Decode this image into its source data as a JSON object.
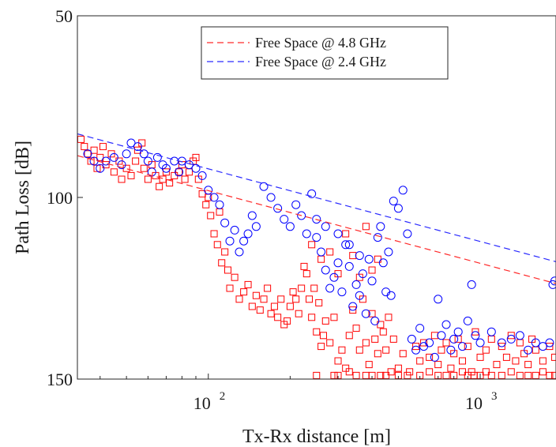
{
  "chart_data": {
    "type": "scatter",
    "x_scale": "log",
    "y_reversed": true,
    "xlim": [
      33,
      1900
    ],
    "ylim": [
      50,
      150
    ],
    "xlabel": "Tx-Rx distance [m]",
    "ylabel": "Path Loss [dB]",
    "y_ticks": [
      {
        "value": 50,
        "label": "50"
      },
      {
        "value": 100,
        "label": "100"
      },
      {
        "value": 150,
        "label": "150"
      }
    ],
    "x_ticks": [
      {
        "value": 100,
        "base": "10",
        "exp": "2"
      },
      {
        "value": 1000,
        "base": "10",
        "exp": "3"
      }
    ],
    "legend_position": "top-center",
    "grid": false,
    "lines": [
      {
        "name": "Free Space @ 4.8 GHz",
        "color": "#ff2a2a",
        "style": "dashed",
        "points": [
          [
            33,
            88.5
          ],
          [
            1900,
            123.7
          ]
        ]
      },
      {
        "name": "Free Space @ 2.4 GHz",
        "color": "#2a2aff",
        "style": "dashed",
        "points": [
          [
            33,
            82.5
          ],
          [
            1900,
            117.7
          ]
        ]
      }
    ],
    "scatter_series": [
      {
        "marker": "square",
        "color": "#ff0000",
        "points": [
          [
            34,
            84
          ],
          [
            35,
            86
          ],
          [
            36,
            88
          ],
          [
            37,
            90
          ],
          [
            38,
            87
          ],
          [
            39,
            92
          ],
          [
            40,
            89
          ],
          [
            41,
            86
          ],
          [
            42,
            91
          ],
          [
            44,
            88
          ],
          [
            45,
            93
          ],
          [
            47,
            90
          ],
          [
            48,
            95
          ],
          [
            50,
            92
          ],
          [
            52,
            94
          ],
          [
            54,
            90
          ],
          [
            55,
            87
          ],
          [
            57,
            85
          ],
          [
            58,
            92
          ],
          [
            60,
            95
          ],
          [
            62,
            91
          ],
          [
            64,
            94
          ],
          [
            66,
            97
          ],
          [
            68,
            95
          ],
          [
            70,
            93
          ],
          [
            72,
            96
          ],
          [
            75,
            94
          ],
          [
            78,
            93
          ],
          [
            80,
            91
          ],
          [
            82,
            95
          ],
          [
            85,
            93
          ],
          [
            88,
            90
          ],
          [
            90,
            89
          ],
          [
            92,
            95
          ],
          [
            95,
            99
          ],
          [
            98,
            102
          ],
          [
            100,
            100
          ],
          [
            102,
            105
          ],
          [
            105,
            110
          ],
          [
            108,
            113
          ],
          [
            110,
            104
          ],
          [
            112,
            118
          ],
          [
            115,
            115
          ],
          [
            118,
            120
          ],
          [
            120,
            125
          ],
          [
            125,
            122
          ],
          [
            130,
            128
          ],
          [
            135,
            126
          ],
          [
            140,
            124
          ],
          [
            145,
            130
          ],
          [
            150,
            127
          ],
          [
            155,
            131
          ],
          [
            160,
            128
          ],
          [
            165,
            125
          ],
          [
            170,
            132
          ],
          [
            175,
            130
          ],
          [
            180,
            133
          ],
          [
            185,
            128
          ],
          [
            190,
            135
          ],
          [
            195,
            134
          ],
          [
            200,
            130
          ],
          [
            205,
            126
          ],
          [
            210,
            128
          ],
          [
            215,
            132
          ],
          [
            220,
            125
          ],
          [
            225,
            119
          ],
          [
            230,
            121
          ],
          [
            235,
            128
          ],
          [
            240,
            133
          ],
          [
            245,
            125
          ],
          [
            250,
            137
          ],
          [
            255,
            129
          ],
          [
            260,
            141
          ],
          [
            265,
            138
          ],
          [
            270,
            134
          ],
          [
            280,
            140
          ],
          [
            290,
            133
          ],
          [
            300,
            145
          ],
          [
            310,
            142
          ],
          [
            320,
            147
          ],
          [
            330,
            138
          ],
          [
            340,
            131
          ],
          [
            350,
            136
          ],
          [
            360,
            142
          ],
          [
            370,
            128
          ],
          [
            380,
            140
          ],
          [
            390,
            146
          ],
          [
            400,
            132
          ],
          [
            410,
            139
          ],
          [
            420,
            143
          ],
          [
            430,
            135
          ],
          [
            440,
            137
          ],
          [
            450,
            142
          ],
          [
            460,
            133
          ],
          [
            470,
            148
          ],
          [
            480,
            139
          ],
          [
            500,
            147
          ],
          [
            520,
            143
          ],
          [
            550,
            148
          ],
          [
            580,
            141
          ],
          [
            600,
            145
          ],
          [
            620,
            140
          ],
          [
            650,
            144
          ],
          [
            680,
            138
          ],
          [
            700,
            146
          ],
          [
            720,
            142
          ],
          [
            750,
            140
          ],
          [
            780,
            147
          ],
          [
            800,
            143
          ],
          [
            830,
            139
          ],
          [
            860,
            145
          ],
          [
            900,
            141
          ],
          [
            930,
            148
          ],
          [
            960,
            137
          ],
          [
            1000,
            144
          ],
          [
            1050,
            142
          ],
          [
            1100,
            139
          ],
          [
            1150,
            146
          ],
          [
            1200,
            141
          ],
          [
            1250,
            144
          ],
          [
            1300,
            138
          ],
          [
            1350,
            145
          ],
          [
            1400,
            140
          ],
          [
            1450,
            143
          ],
          [
            1500,
            146
          ],
          [
            1550,
            139
          ],
          [
            1600,
            142
          ],
          [
            1700,
            145
          ],
          [
            1800,
            141
          ],
          [
            1880,
            144
          ],
          [
            250,
            149
          ],
          [
            300,
            149
          ],
          [
            350,
            149
          ],
          [
            400,
            149
          ],
          [
            450,
            149
          ],
          [
            500,
            149
          ],
          [
            600,
            149
          ],
          [
            700,
            149
          ],
          [
            800,
            149
          ],
          [
            900,
            149
          ],
          [
            1000,
            149
          ],
          [
            1100,
            149
          ],
          [
            1200,
            149
          ],
          [
            1400,
            149
          ],
          [
            1600,
            149
          ],
          [
            1800,
            149
          ],
          [
            290,
            149
          ],
          [
            330,
            148
          ],
          [
            380,
            149
          ],
          [
            430,
            149
          ],
          [
            540,
            149
          ],
          [
            650,
            148
          ],
          [
            750,
            149
          ],
          [
            860,
            148
          ],
          [
            950,
            149
          ],
          [
            1050,
            148
          ],
          [
            1300,
            148
          ],
          [
            1500,
            149
          ],
          [
            1700,
            148
          ],
          [
            1880,
            149
          ],
          [
            240,
            113
          ],
          [
            260,
            117
          ],
          [
            280,
            115
          ],
          [
            300,
            121
          ],
          [
            320,
            110
          ],
          [
            340,
            116
          ],
          [
            360,
            122
          ],
          [
            380,
            108
          ],
          [
            400,
            120
          ],
          [
            420,
            117
          ]
        ]
      },
      {
        "marker": "circle",
        "color": "#0000ff",
        "points": [
          [
            36,
            88
          ],
          [
            38,
            90
          ],
          [
            40,
            92
          ],
          [
            42,
            90
          ],
          [
            45,
            89
          ],
          [
            48,
            91
          ],
          [
            50,
            88
          ],
          [
            52,
            85
          ],
          [
            55,
            86
          ],
          [
            58,
            88
          ],
          [
            60,
            90
          ],
          [
            62,
            93
          ],
          [
            65,
            89
          ],
          [
            68,
            91
          ],
          [
            70,
            92
          ],
          [
            75,
            90
          ],
          [
            78,
            93
          ],
          [
            80,
            90
          ],
          [
            85,
            91
          ],
          [
            90,
            92
          ],
          [
            95,
            94
          ],
          [
            100,
            98
          ],
          [
            105,
            100
          ],
          [
            110,
            102
          ],
          [
            115,
            107
          ],
          [
            120,
            112
          ],
          [
            125,
            109
          ],
          [
            130,
            115
          ],
          [
            135,
            112
          ],
          [
            140,
            110
          ],
          [
            145,
            105
          ],
          [
            150,
            108
          ],
          [
            160,
            97
          ],
          [
            170,
            100
          ],
          [
            180,
            103
          ],
          [
            190,
            106
          ],
          [
            200,
            108
          ],
          [
            210,
            102
          ],
          [
            220,
            105
          ],
          [
            230,
            110
          ],
          [
            240,
            99
          ],
          [
            250,
            106
          ],
          [
            260,
            115
          ],
          [
            270,
            120
          ],
          [
            280,
            125
          ],
          [
            290,
            122
          ],
          [
            300,
            118
          ],
          [
            310,
            126
          ],
          [
            320,
            113
          ],
          [
            330,
            119
          ],
          [
            340,
            130
          ],
          [
            350,
            124
          ],
          [
            360,
            127
          ],
          [
            370,
            121
          ],
          [
            380,
            132
          ],
          [
            390,
            117
          ],
          [
            400,
            123
          ],
          [
            410,
            134
          ],
          [
            420,
            111
          ],
          [
            430,
            108
          ],
          [
            440,
            118
          ],
          [
            450,
            126
          ],
          [
            460,
            115
          ],
          [
            470,
            127
          ],
          [
            480,
            101
          ],
          [
            500,
            103
          ],
          [
            520,
            98
          ],
          [
            540,
            110
          ],
          [
            560,
            139
          ],
          [
            580,
            142
          ],
          [
            600,
            136
          ],
          [
            620,
            141
          ],
          [
            650,
            140
          ],
          [
            680,
            144
          ],
          [
            700,
            128
          ],
          [
            720,
            138
          ],
          [
            750,
            135
          ],
          [
            780,
            142
          ],
          [
            800,
            139
          ],
          [
            830,
            137
          ],
          [
            860,
            141
          ],
          [
            900,
            134
          ],
          [
            930,
            124
          ],
          [
            960,
            138
          ],
          [
            1000,
            140
          ],
          [
            1100,
            137
          ],
          [
            1200,
            140
          ],
          [
            1300,
            139
          ],
          [
            1400,
            138
          ],
          [
            1500,
            142
          ],
          [
            1600,
            140
          ],
          [
            1700,
            141
          ],
          [
            1800,
            140
          ],
          [
            1880,
            123
          ],
          [
            1850,
            124
          ],
          [
            250,
            111
          ],
          [
            270,
            108
          ],
          [
            300,
            110
          ],
          [
            330,
            113
          ],
          [
            360,
            116
          ]
        ]
      }
    ]
  }
}
